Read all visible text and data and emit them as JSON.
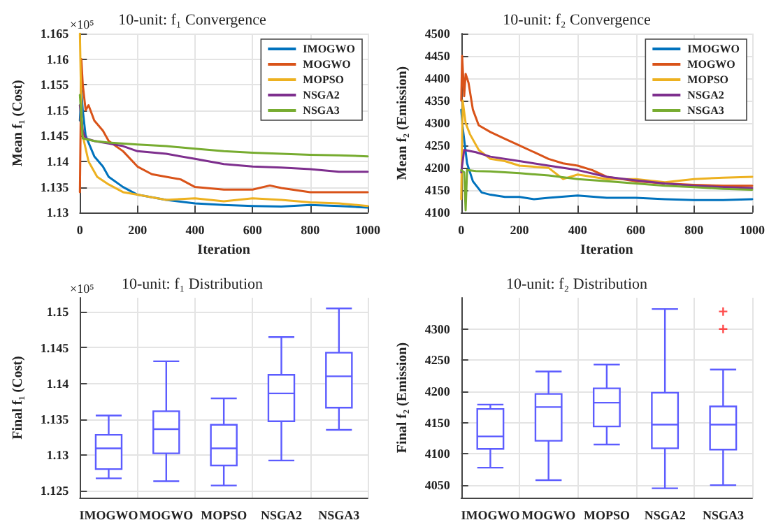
{
  "chart_data": [
    {
      "type": "line",
      "title": "10-unit: f₁ Convergence",
      "xlabel": "Iteration",
      "ylabel": "Mean f₁ (Cost)",
      "annotations": [
        "×10⁵"
      ],
      "xlim": [
        0,
        1000
      ],
      "xticks": [
        0,
        200,
        400,
        600,
        800,
        1000
      ],
      "ylim": [
        1.13,
        1.165
      ],
      "yticks": [
        1.13,
        1.135,
        1.14,
        1.145,
        1.15,
        1.155,
        1.16,
        1.165
      ],
      "grid": true,
      "legend": "top right",
      "series": [
        {
          "name": "IMOGWO",
          "color": "#0072bd",
          "x": [
            0,
            5,
            10,
            20,
            50,
            80,
            100,
            150,
            200,
            300,
            400,
            500,
            600,
            700,
            800,
            900,
            1000
          ],
          "values": [
            1.148,
            1.154,
            1.15,
            1.145,
            1.141,
            1.139,
            1.137,
            1.135,
            1.1335,
            1.1325,
            1.1318,
            1.1315,
            1.1313,
            1.1312,
            1.1315,
            1.1313,
            1.131
          ]
        },
        {
          "name": "MOGWO",
          "color": "#d95319",
          "x": [
            0,
            5,
            10,
            20,
            30,
            50,
            80,
            100,
            150,
            200,
            250,
            300,
            350,
            400,
            500,
            600,
            660,
            700,
            800,
            900,
            1000
          ],
          "values": [
            1.134,
            1.16,
            1.155,
            1.15,
            1.151,
            1.148,
            1.146,
            1.144,
            1.142,
            1.139,
            1.1375,
            1.137,
            1.1365,
            1.135,
            1.1345,
            1.1345,
            1.1353,
            1.1348,
            1.134,
            1.134,
            1.134
          ]
        },
        {
          "name": "MOPSO",
          "color": "#edb120",
          "x": [
            0,
            5,
            10,
            30,
            60,
            100,
            150,
            200,
            250,
            300,
            400,
            500,
            600,
            700,
            800,
            900,
            1000
          ],
          "values": [
            1.165,
            1.15,
            1.145,
            1.14,
            1.137,
            1.1355,
            1.134,
            1.1335,
            1.133,
            1.1325,
            1.1328,
            1.1322,
            1.1328,
            1.1325,
            1.132,
            1.1318,
            1.1313
          ]
        },
        {
          "name": "NSGA2",
          "color": "#7e2f8e",
          "x": [
            0,
            10,
            20,
            50,
            100,
            150,
            200,
            300,
            400,
            500,
            600,
            700,
            800,
            900,
            1000
          ],
          "values": [
            1.151,
            1.146,
            1.1445,
            1.144,
            1.1435,
            1.143,
            1.142,
            1.1415,
            1.1405,
            1.1395,
            1.139,
            1.1388,
            1.1385,
            1.138,
            1.138
          ]
        },
        {
          "name": "NSGA3",
          "color": "#77ac30",
          "x": [
            0,
            10,
            50,
            100,
            200,
            300,
            400,
            500,
            600,
            700,
            800,
            900,
            1000
          ],
          "values": [
            1.153,
            1.1445,
            1.144,
            1.1437,
            1.1433,
            1.143,
            1.1425,
            1.142,
            1.1417,
            1.1415,
            1.1413,
            1.1412,
            1.141
          ]
        }
      ]
    },
    {
      "type": "line",
      "title": "10-unit: f₂ Convergence",
      "xlabel": "Iteration",
      "ylabel": "Mean f₂ (Emission)",
      "xlim": [
        0,
        1000
      ],
      "xticks": [
        0,
        200,
        400,
        600,
        800,
        1000
      ],
      "ylim": [
        4100,
        4500
      ],
      "yticks": [
        4100,
        4150,
        4200,
        4250,
        4300,
        4350,
        4400,
        4450,
        4500
      ],
      "grid": true,
      "legend": "top right",
      "series": [
        {
          "name": "IMOGWO",
          "color": "#0072bd",
          "x": [
            0,
            5,
            20,
            40,
            70,
            100,
            150,
            200,
            250,
            300,
            400,
            500,
            600,
            700,
            800,
            900,
            1000
          ],
          "values": [
            4330,
            4290,
            4210,
            4170,
            4145,
            4140,
            4135,
            4135,
            4130,
            4133,
            4138,
            4133,
            4133,
            4130,
            4128,
            4128,
            4130
          ]
        },
        {
          "name": "MOGWO",
          "color": "#d95319",
          "x": [
            0,
            3,
            10,
            15,
            25,
            40,
            60,
            100,
            150,
            200,
            250,
            300,
            350,
            400,
            450,
            500,
            600,
            700,
            800,
            900,
            1000
          ],
          "values": [
            4350,
            4450,
            4360,
            4410,
            4390,
            4330,
            4295,
            4280,
            4265,
            4250,
            4235,
            4220,
            4210,
            4205,
            4195,
            4180,
            4170,
            4165,
            4162,
            4160,
            4160
          ]
        },
        {
          "name": "MOPSO",
          "color": "#edb120",
          "x": [
            0,
            5,
            15,
            30,
            60,
            100,
            150,
            200,
            300,
            350,
            400,
            500,
            600,
            700,
            800,
            900,
            1000
          ],
          "values": [
            4130,
            4350,
            4300,
            4275,
            4240,
            4220,
            4215,
            4205,
            4200,
            4175,
            4185,
            4175,
            4175,
            4168,
            4175,
            4178,
            4180
          ]
        },
        {
          "name": "NSGA2",
          "color": "#7e2f8e",
          "x": [
            0,
            10,
            50,
            100,
            200,
            300,
            400,
            500,
            600,
            700,
            800,
            900,
            1000
          ],
          "values": [
            4190,
            4240,
            4235,
            4225,
            4215,
            4205,
            4195,
            4180,
            4172,
            4165,
            4160,
            4157,
            4155
          ]
        },
        {
          "name": "NSGA3",
          "color": "#77ac30",
          "x": [
            0,
            10,
            15,
            20,
            50,
            100,
            200,
            300,
            400,
            500,
            600,
            700,
            800,
            900,
            1000
          ],
          "values": [
            4195,
            4190,
            4105,
            4195,
            4193,
            4192,
            4188,
            4183,
            4175,
            4170,
            4165,
            4160,
            4157,
            4153,
            4151
          ]
        }
      ]
    },
    {
      "type": "box",
      "title": "10-unit: f₁ Distribution",
      "ylabel": "Final f₁ (Cost)",
      "annotations": [
        "×10⁵"
      ],
      "categories": [
        "IMOGWO",
        "MOGWO",
        "MOPSO",
        "NSGA2",
        "NSGA3"
      ],
      "ylim": [
        1.124,
        1.152
      ],
      "yticks": [
        1.125,
        1.13,
        1.135,
        1.14,
        1.145,
        1.15
      ],
      "grid": true,
      "series": [
        {
          "color": "#5c5cff",
          "boxes": [
            {
              "low": 1.1267,
              "q1": 1.128,
              "median": 1.1309,
              "q3": 1.1328,
              "high": 1.1355
            },
            {
              "low": 1.1263,
              "q1": 1.1302,
              "median": 1.1336,
              "q3": 1.1361,
              "high": 1.1431
            },
            {
              "low": 1.1257,
              "q1": 1.1285,
              "median": 1.1309,
              "q3": 1.1342,
              "high": 1.1379
            },
            {
              "low": 1.1292,
              "q1": 1.1347,
              "median": 1.1386,
              "q3": 1.1412,
              "high": 1.1465
            },
            {
              "low": 1.1335,
              "q1": 1.1366,
              "median": 1.141,
              "q3": 1.1443,
              "high": 1.1505
            }
          ]
        }
      ]
    },
    {
      "type": "box",
      "title": "10-unit: f₂ Distribution",
      "ylabel": "Final f₂ (Emission)",
      "categories": [
        "IMOGWO",
        "MOGWO",
        "MOPSO",
        "NSGA2",
        "NSGA3"
      ],
      "ylim": [
        4030,
        4350
      ],
      "yticks": [
        4050,
        4100,
        4150,
        4200,
        4250,
        4300
      ],
      "grid": true,
      "series": [
        {
          "color": "#5c5cff",
          "boxes": [
            {
              "low": 4078,
              "q1": 4108,
              "median": 4128,
              "q3": 4172,
              "high": 4179
            },
            {
              "low": 4058,
              "q1": 4121,
              "median": 4175,
              "q3": 4196,
              "high": 4232
            },
            {
              "low": 4115,
              "q1": 4144,
              "median": 4182,
              "q3": 4205,
              "high": 4243
            },
            {
              "low": 4045,
              "q1": 4109,
              "median": 4147,
              "q3": 4198,
              "high": 4332
            },
            {
              "low": 4050,
              "q1": 4107,
              "median": 4147,
              "q3": 4176,
              "high": 4235,
              "outliers": [
                4300,
                4328
              ]
            }
          ]
        }
      ]
    }
  ]
}
